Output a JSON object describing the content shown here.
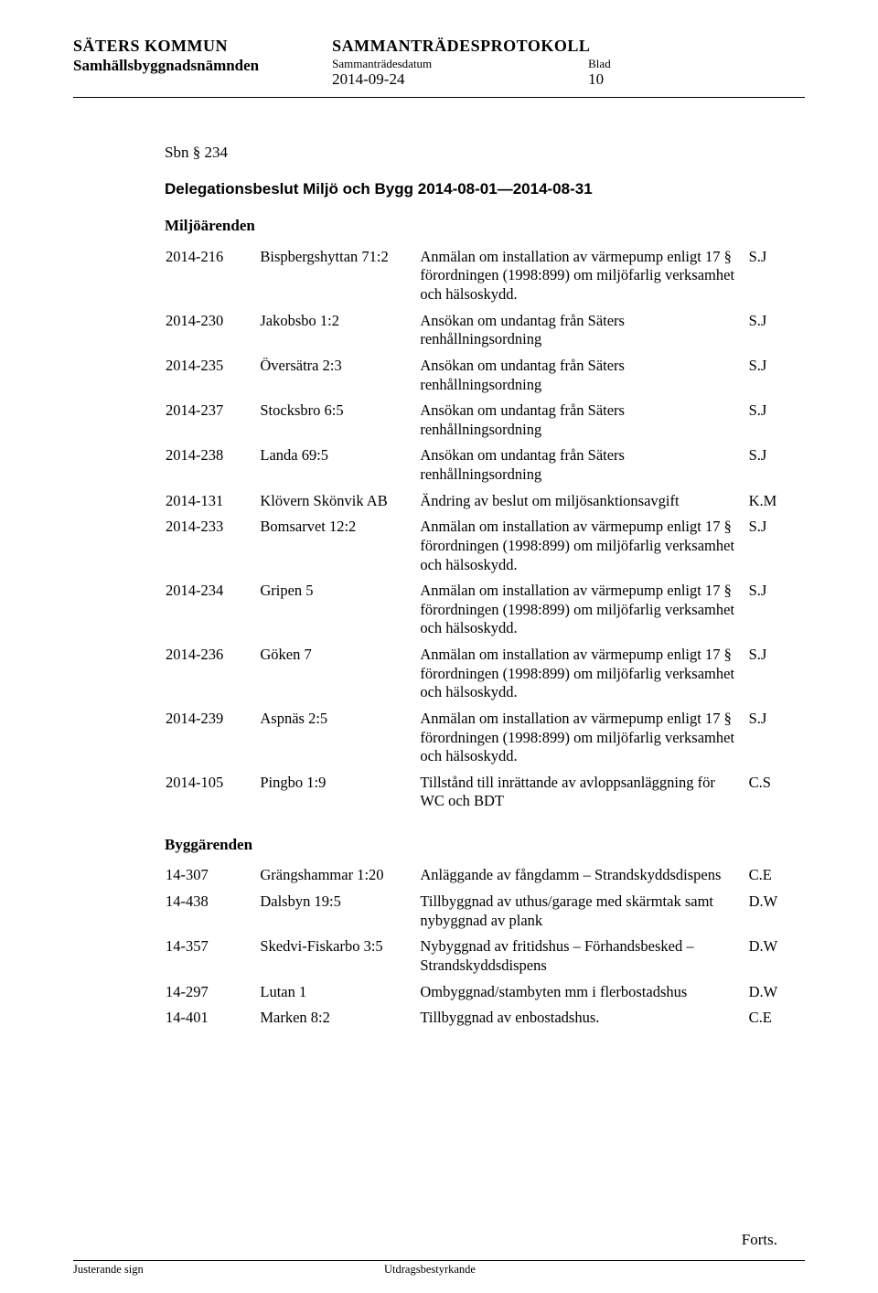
{
  "header": {
    "org": "SÄTERS KOMMUN",
    "committee": "Samhällsbyggnadsnämnden",
    "protocol_title": "SAMMANTRÄDESPROTOKOLL",
    "date_label": "Sammanträdesdatum",
    "page_label": "Blad",
    "date_value": "2014-09-24",
    "page_value": "10"
  },
  "body": {
    "sbn_ref": "Sbn § 234",
    "title": "Delegationsbeslut Miljö och Bygg 2014-08-01—2014-08-31",
    "section_miljo": "Miljöärenden",
    "section_bygg": "Byggärenden",
    "forts": "Forts."
  },
  "miljo": [
    {
      "id": "2014-216",
      "prop": "Bispbergshyttan 71:2",
      "desc": "Anmälan om installation av värmepump enligt 17 § förordningen (1998:899) om miljöfarlig verksamhet och hälsoskydd.",
      "sig": "S.J"
    },
    {
      "id": "2014-230",
      "prop": "Jakobsbo 1:2",
      "desc": "Ansökan om undantag från Säters renhållningsordning",
      "sig": "S.J"
    },
    {
      "id": "2014-235",
      "prop": "Översätra 2:3",
      "desc": "Ansökan om undantag från Säters renhållningsordning",
      "sig": "S.J"
    },
    {
      "id": "2014-237",
      "prop": "Stocksbro 6:5",
      "desc": "Ansökan om undantag från Säters renhållningsordning",
      "sig": "S.J"
    },
    {
      "id": "2014-238",
      "prop": "Landa 69:5",
      "desc": "Ansökan om undantag från Säters renhållningsordning",
      "sig": "S.J"
    },
    {
      "id": "2014-131",
      "prop": "Klövern Skönvik AB",
      "desc": "Ändring av beslut om miljösanktionsavgift",
      "sig": "K.M"
    },
    {
      "id": "2014-233",
      "prop": "Bomsarvet 12:2",
      "desc": "Anmälan om installation av värmepump enligt 17 § förordningen (1998:899) om miljöfarlig verksamhet och hälsoskydd.",
      "sig": "S.J"
    },
    {
      "id": "2014-234",
      "prop": "Gripen 5",
      "desc": "Anmälan om installation av värmepump enligt 17 § förordningen (1998:899) om miljöfarlig verksamhet och hälsoskydd.",
      "sig": "S.J"
    },
    {
      "id": "2014-236",
      "prop": "Göken 7",
      "desc": "Anmälan om installation av värmepump enligt 17 § förordningen (1998:899) om miljöfarlig verksamhet och hälsoskydd.",
      "sig": "S.J"
    },
    {
      "id": "2014-239",
      "prop": "Aspnäs 2:5",
      "desc": "Anmälan om installation av värmepump enligt 17 § förordningen (1998:899) om miljöfarlig verksamhet och hälsoskydd.",
      "sig": "S.J"
    },
    {
      "id": "2014-105",
      "prop": "Pingbo 1:9",
      "desc": "Tillstånd till inrättande av avloppsanläggning för WC och BDT",
      "sig": "C.S"
    }
  ],
  "bygg": [
    {
      "id": "14-307",
      "prop": "Grängshammar 1:20",
      "desc": "Anläggande av fångdamm – Strandskyddsdispens",
      "sig": "C.E"
    },
    {
      "id": "14-438",
      "prop": "Dalsbyn 19:5",
      "desc": "Tillbyggnad av uthus/garage med skärmtak samt nybyggnad av plank",
      "sig": "D.W"
    },
    {
      "id": "14-357",
      "prop": "Skedvi-Fiskarbo 3:5",
      "desc": "Nybyggnad av fritidshus – Förhandsbesked – Strandskyddsdispens",
      "sig": "D.W"
    },
    {
      "id": "14-297",
      "prop": "Lutan 1",
      "desc": "Ombyggnad/stambyten mm i flerbostadshus",
      "sig": "D.W"
    },
    {
      "id": "14-401",
      "prop": "Marken 8:2",
      "desc": "Tillbyggnad av enbostadshus.",
      "sig": "C.E"
    }
  ],
  "footer": {
    "left": "Justerande sign",
    "right": "Utdragsbestyrkande"
  }
}
